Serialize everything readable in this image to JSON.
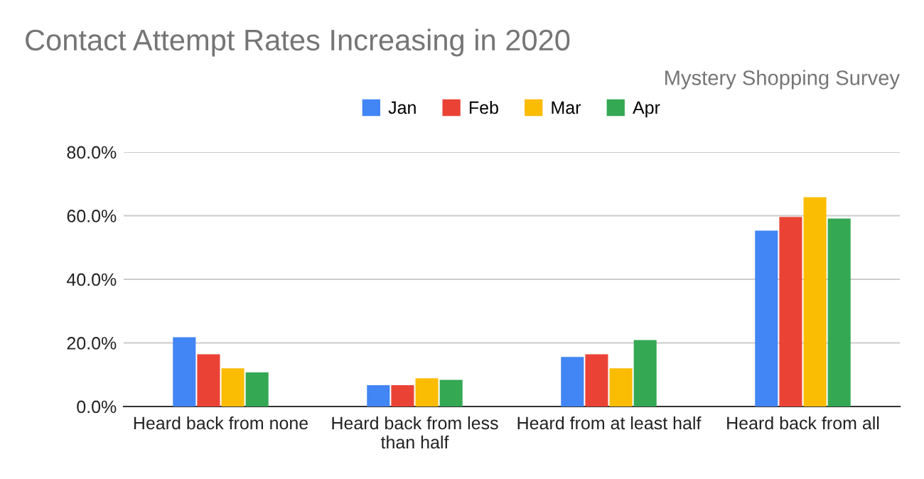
{
  "chart_data": {
    "type": "bar",
    "title": "Contact Attempt Rates Increasing in 2020",
    "subtitle": "Mystery Shopping Survey",
    "categories": [
      "Heard back from none",
      "Heard back from less\nthan half",
      "Heard from at least half",
      "Heard back from all"
    ],
    "series": [
      {
        "name": "Jan",
        "color": "#4285f4",
        "values": [
          21.8,
          6.7,
          15.6,
          55.3
        ]
      },
      {
        "name": "Feb",
        "color": "#ea4335",
        "values": [
          16.4,
          6.7,
          16.4,
          59.6
        ]
      },
      {
        "name": "Mar",
        "color": "#fbbc04",
        "values": [
          12.0,
          8.9,
          12.0,
          65.8
        ]
      },
      {
        "name": "Apr",
        "color": "#34a853",
        "values": [
          10.7,
          8.4,
          20.9,
          59.1
        ]
      }
    ],
    "ylim": [
      0,
      80
    ],
    "yticks": [
      {
        "value": 0,
        "label": "0.0%"
      },
      {
        "value": 20,
        "label": "20.0%"
      },
      {
        "value": 40,
        "label": "40.0%"
      },
      {
        "value": 60,
        "label": "60.0%"
      },
      {
        "value": 80,
        "label": "80.0%"
      }
    ],
    "grid": "y",
    "legend": "top"
  }
}
